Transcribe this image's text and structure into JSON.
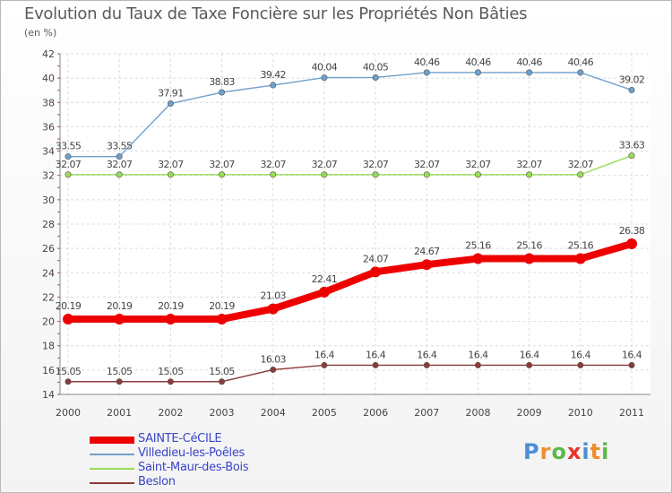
{
  "chart_data": {
    "type": "line",
    "title": "Evolution du Taux de Taxe Foncière sur les Propriétés Non Bâties",
    "subtitle": "(en %)",
    "xlabel": "",
    "ylabel": "",
    "ylim": [
      14,
      42
    ],
    "yticks": [
      14,
      16,
      18,
      20,
      22,
      24,
      26,
      28,
      30,
      32,
      34,
      36,
      38,
      40,
      42
    ],
    "grid": true,
    "legend_position": "bottom-left",
    "categories": [
      "2000",
      "2001",
      "2002",
      "2003",
      "2004",
      "2005",
      "2006",
      "2007",
      "2008",
      "2009",
      "2010",
      "2011"
    ],
    "series": [
      {
        "name": "SAINTE-CéCILE",
        "color": "#ee0000",
        "values": [
          20.19,
          20.19,
          20.19,
          20.19,
          21.03,
          22.41,
          24.07,
          24.67,
          25.16,
          25.16,
          25.16,
          26.38
        ],
        "labels": [
          "20.19",
          "20.19",
          "20.19",
          "20.19",
          "21.03",
          "22.41",
          "24.07",
          "24.67",
          "25.16",
          "25.16",
          "25.16",
          "26.38"
        ]
      },
      {
        "name": "Villedieu-les-Poêles",
        "color": "#6fa0cc",
        "values": [
          33.55,
          33.55,
          37.91,
          38.83,
          39.42,
          40.04,
          40.05,
          40.46,
          40.46,
          40.46,
          40.46,
          39.02
        ],
        "labels": [
          "33.55",
          "33.55",
          "37.91",
          "38.83",
          "39.42",
          "40.04",
          "40.05",
          "40.46",
          "40.46",
          "40.46",
          "40.46",
          "39.02"
        ]
      },
      {
        "name": "Saint-Maur-des-Bois",
        "color": "#99dd55",
        "values": [
          32.07,
          32.07,
          32.07,
          32.07,
          32.07,
          32.07,
          32.07,
          32.07,
          32.07,
          32.07,
          32.07,
          33.63
        ],
        "labels": [
          "32.07",
          "32.07",
          "32.07",
          "32.07",
          "32.07",
          "32.07",
          "32.07",
          "32.07",
          "32.07",
          "32.07",
          "32.07",
          "33.63"
        ]
      },
      {
        "name": "Beslon",
        "color": "#8b3a3a",
        "values": [
          15.05,
          15.05,
          15.05,
          15.05,
          16.03,
          16.4,
          16.4,
          16.4,
          16.4,
          16.4,
          16.4,
          16.4
        ],
        "labels": [
          "15.05",
          "15.05",
          "15.05",
          "15.05",
          "16.03",
          "16.4",
          "16.4",
          "16.4",
          "16.4",
          "16.4",
          "16.4",
          "16.4"
        ]
      }
    ]
  },
  "logo": {
    "letters": [
      "P",
      "r",
      "o",
      "x",
      "i",
      "t",
      "i"
    ],
    "colors": [
      "#4a8fd6",
      "#f28c28",
      "#59b94a",
      "#e8332a",
      "#4a8fd6",
      "#f28c28",
      "#59b94a"
    ]
  }
}
